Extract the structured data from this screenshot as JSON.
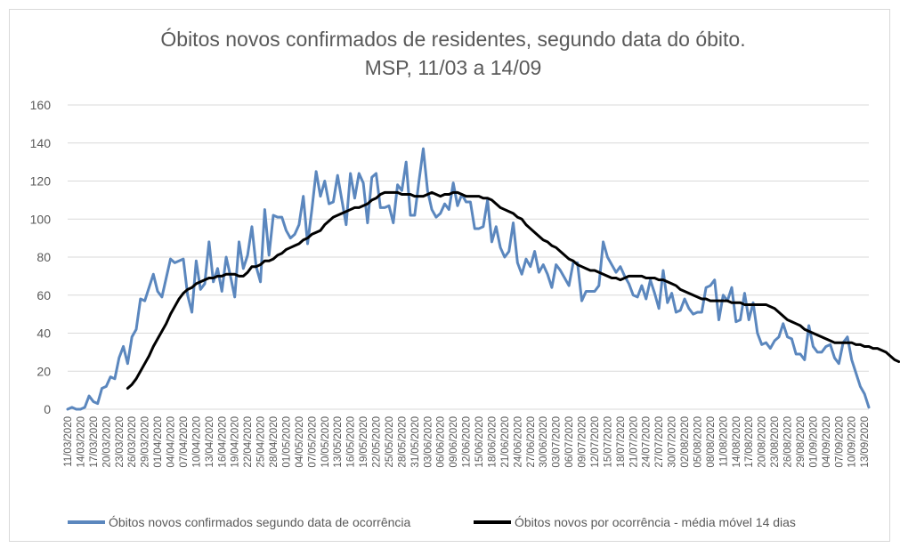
{
  "chart_data": {
    "type": "line",
    "title_line1": "Óbitos novos confirmados de residentes, segundo data do óbito.",
    "title_line2": "MSP, 11/03 a 14/09",
    "xlabel": "",
    "ylabel": "",
    "ylim": [
      0,
      160
    ],
    "yticks": [
      0,
      20,
      40,
      60,
      80,
      100,
      120,
      140,
      160
    ],
    "grid": true,
    "legend_position": "bottom",
    "colors": {
      "daily": "#5B87BE",
      "average": "#000000",
      "grid": "#D9D9D9",
      "text": "#595959"
    },
    "x_start": "11/03/2020",
    "x_labels": [
      "11/03/2020",
      "14/03/2020",
      "17/03/2020",
      "20/03/2020",
      "23/03/2020",
      "26/03/2020",
      "29/03/2020",
      "01/04/2020",
      "04/04/2020",
      "07/04/2020",
      "10/04/2020",
      "13/04/2020",
      "16/04/2020",
      "19/04/2020",
      "22/04/2020",
      "25/04/2020",
      "28/04/2020",
      "01/05/2020",
      "04/05/2020",
      "07/05/2020",
      "10/05/2020",
      "13/05/2020",
      "16/05/2020",
      "19/05/2020",
      "22/05/2020",
      "25/05/2020",
      "28/05/2020",
      "31/05/2020",
      "03/06/2020",
      "06/06/2020",
      "09/06/2020",
      "12/06/2020",
      "15/06/2020",
      "18/06/2020",
      "21/06/2020",
      "24/06/2020",
      "27/06/2020",
      "30/06/2020",
      "03/07/2020",
      "06/07/2020",
      "09/07/2020",
      "12/07/2020",
      "15/07/2020",
      "18/07/2020",
      "21/07/2020",
      "24/07/2020",
      "27/07/2020",
      "30/07/2020",
      "02/08/2020",
      "05/08/2020",
      "08/08/2020",
      "11/08/2020",
      "14/08/2020",
      "17/08/2020",
      "20/08/2020",
      "23/08/2020",
      "26/08/2020",
      "29/08/2020",
      "01/09/2020",
      "04/09/2020",
      "07/09/2020",
      "10/09/2020",
      "13/09/2020"
    ],
    "series": [
      {
        "name": "Óbitos novos confirmados segundo data de ocorrência",
        "values": [
          0,
          1,
          0,
          0,
          1,
          7,
          4,
          3,
          11,
          12,
          17,
          16,
          27,
          33,
          24,
          38,
          42,
          58,
          57,
          64,
          71,
          62,
          59,
          69,
          79,
          77,
          78,
          79,
          60,
          51,
          78,
          63,
          66,
          88,
          67,
          74,
          62,
          80,
          70,
          59,
          88,
          74,
          81,
          96,
          75,
          67,
          105,
          81,
          102,
          101,
          101,
          94,
          90,
          92,
          97,
          112,
          87,
          105,
          125,
          112,
          120,
          108,
          109,
          123,
          110,
          97,
          124,
          111,
          124,
          119,
          98,
          122,
          124,
          106,
          106,
          107,
          98,
          118,
          115,
          130,
          102,
          102,
          120,
          137,
          115,
          105,
          101,
          103,
          108,
          105,
          119,
          107,
          113,
          109,
          109,
          95,
          95,
          96,
          110,
          88,
          96,
          85,
          80,
          83,
          98,
          77,
          71,
          79,
          75,
          83,
          72,
          76,
          71,
          64,
          76,
          73,
          69,
          65,
          77,
          77,
          57,
          62,
          62,
          62,
          65,
          88,
          80,
          76,
          72,
          75,
          70,
          66,
          60,
          59,
          65,
          58,
          68,
          61,
          53,
          73,
          56,
          61,
          51,
          52,
          58,
          53,
          50,
          51,
          51,
          64,
          65,
          68,
          47,
          60,
          57,
          64,
          46,
          47,
          61,
          47,
          56,
          40,
          34,
          35,
          32,
          36,
          38,
          45,
          38,
          37,
          29,
          29,
          26,
          44,
          33,
          30,
          30,
          33,
          34,
          27,
          24,
          35,
          38,
          26,
          19,
          12,
          8,
          1
        ]
      },
      {
        "name": "Óbitos novos por ocorrência - média móvel 14 dias",
        "offset": 14,
        "values": [
          11,
          13,
          16,
          20,
          24,
          28,
          33,
          37,
          41,
          45,
          50,
          54,
          58,
          61,
          63,
          64,
          66,
          67,
          68,
          69,
          69,
          70,
          70,
          71,
          71,
          71,
          70,
          70,
          72,
          75,
          75,
          76,
          78,
          78,
          79,
          81,
          82,
          84,
          85,
          86,
          87,
          89,
          90,
          92,
          93,
          94,
          97,
          99,
          101,
          102,
          103,
          104,
          105,
          106,
          106,
          107,
          108,
          110,
          111,
          113,
          114,
          114,
          114,
          114,
          113,
          113,
          113,
          112,
          112,
          112,
          113,
          114,
          113,
          112,
          113,
          113,
          114,
          114,
          113,
          112,
          112,
          112,
          112,
          111,
          111,
          110,
          108,
          106,
          105,
          104,
          103,
          101,
          100,
          97,
          95,
          93,
          91,
          89,
          88,
          86,
          85,
          83,
          81,
          79,
          78,
          76,
          75,
          74,
          73,
          73,
          72,
          71,
          70,
          69,
          69,
          68,
          69,
          70,
          70,
          70,
          70,
          69,
          69,
          69,
          68,
          68,
          67,
          66,
          65,
          63,
          62,
          61,
          60,
          59,
          58,
          58,
          57,
          57,
          57,
          57,
          57,
          56,
          56,
          56,
          55,
          55,
          55,
          55,
          55,
          55,
          54,
          53,
          51,
          49,
          47,
          46,
          45,
          44,
          42,
          41,
          40,
          39,
          38,
          37,
          36,
          35,
          35,
          35,
          35,
          35,
          34,
          34,
          33,
          33,
          32,
          32,
          31,
          30,
          28,
          26,
          25
        ]
      }
    ]
  }
}
